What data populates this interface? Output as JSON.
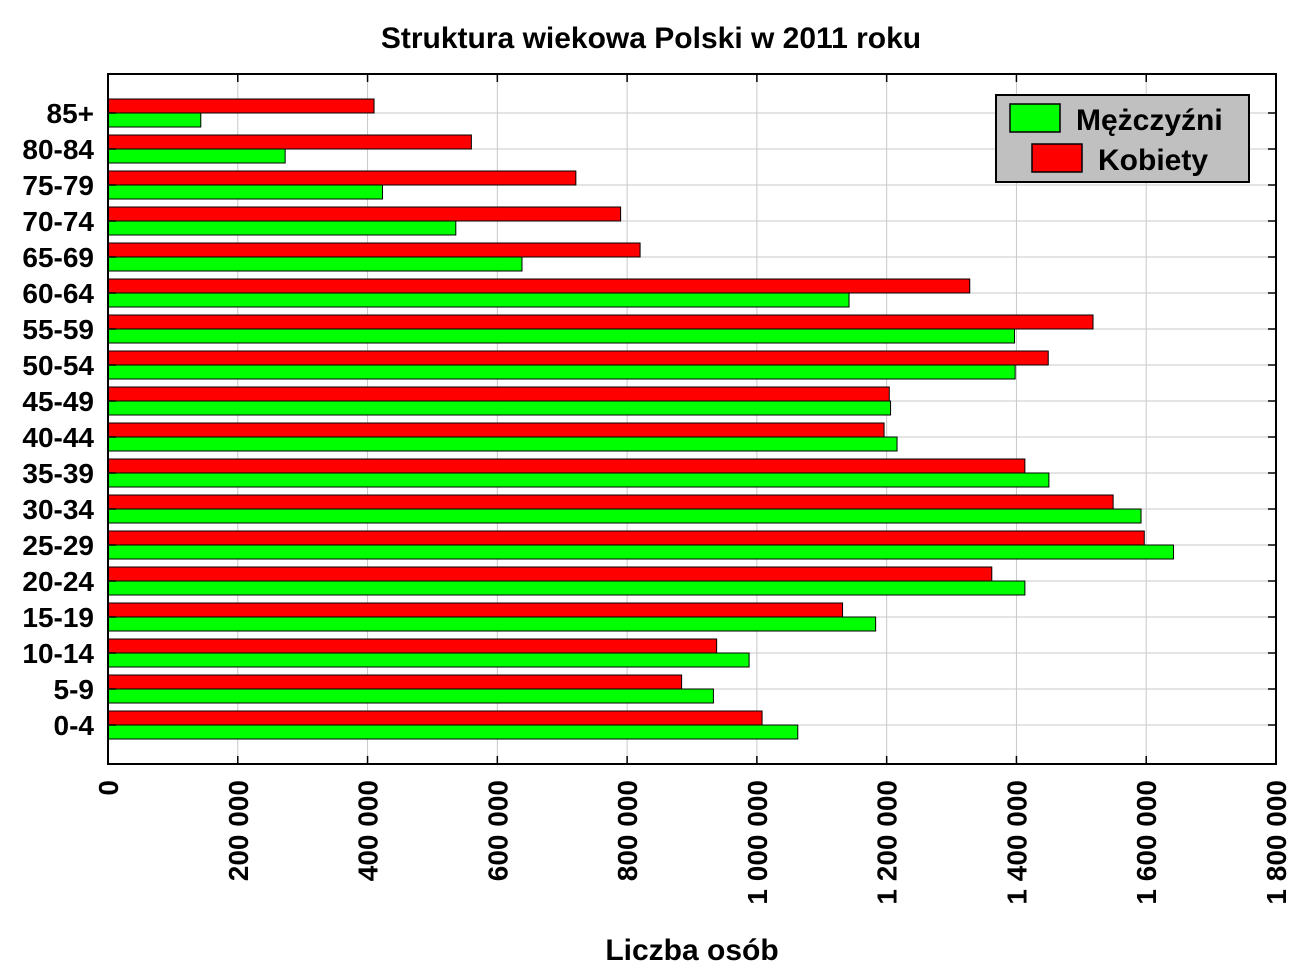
{
  "chart_data": {
    "type": "bar",
    "orientation": "horizontal",
    "title": "Struktura wiekowa Polski w 2011 roku",
    "xlabel": "Liczba osób",
    "ylabel": "",
    "xlim": [
      0,
      1800000
    ],
    "x_ticks": [
      0,
      200000,
      400000,
      600000,
      800000,
      1000000,
      1200000,
      1400000,
      1600000,
      1800000
    ],
    "x_tick_labels": [
      "0",
      "200 000",
      "400 000",
      "600 000",
      "800 000",
      "1 000 000",
      "1 200 000",
      "1 400 000",
      "1 600 000",
      "1 800 000"
    ],
    "categories": [
      "0-4",
      "5-9",
      "10-14",
      "15-19",
      "20-24",
      "25-29",
      "30-34",
      "35-39",
      "40-44",
      "45-49",
      "50-54",
      "55-59",
      "60-64",
      "65-69",
      "70-74",
      "75-79",
      "80-84",
      "85+"
    ],
    "series": [
      {
        "name": "Mężczyźni",
        "color": "#00ff00",
        "values": [
          1063000,
          933000,
          988000,
          1183000,
          1413000,
          1642000,
          1592000,
          1450000,
          1216000,
          1206000,
          1398000,
          1397000,
          1142000,
          638000,
          536000,
          423000,
          273000,
          143000
        ]
      },
      {
        "name": "Kobiety",
        "color": "#ff0000",
        "values": [
          1008000,
          884000,
          938000,
          1132000,
          1362000,
          1597000,
          1549000,
          1413000,
          1196000,
          1204000,
          1449000,
          1518000,
          1328000,
          820000,
          790000,
          721000,
          560000,
          410000
        ]
      }
    ],
    "grid": true,
    "legend_position": "top-right"
  }
}
